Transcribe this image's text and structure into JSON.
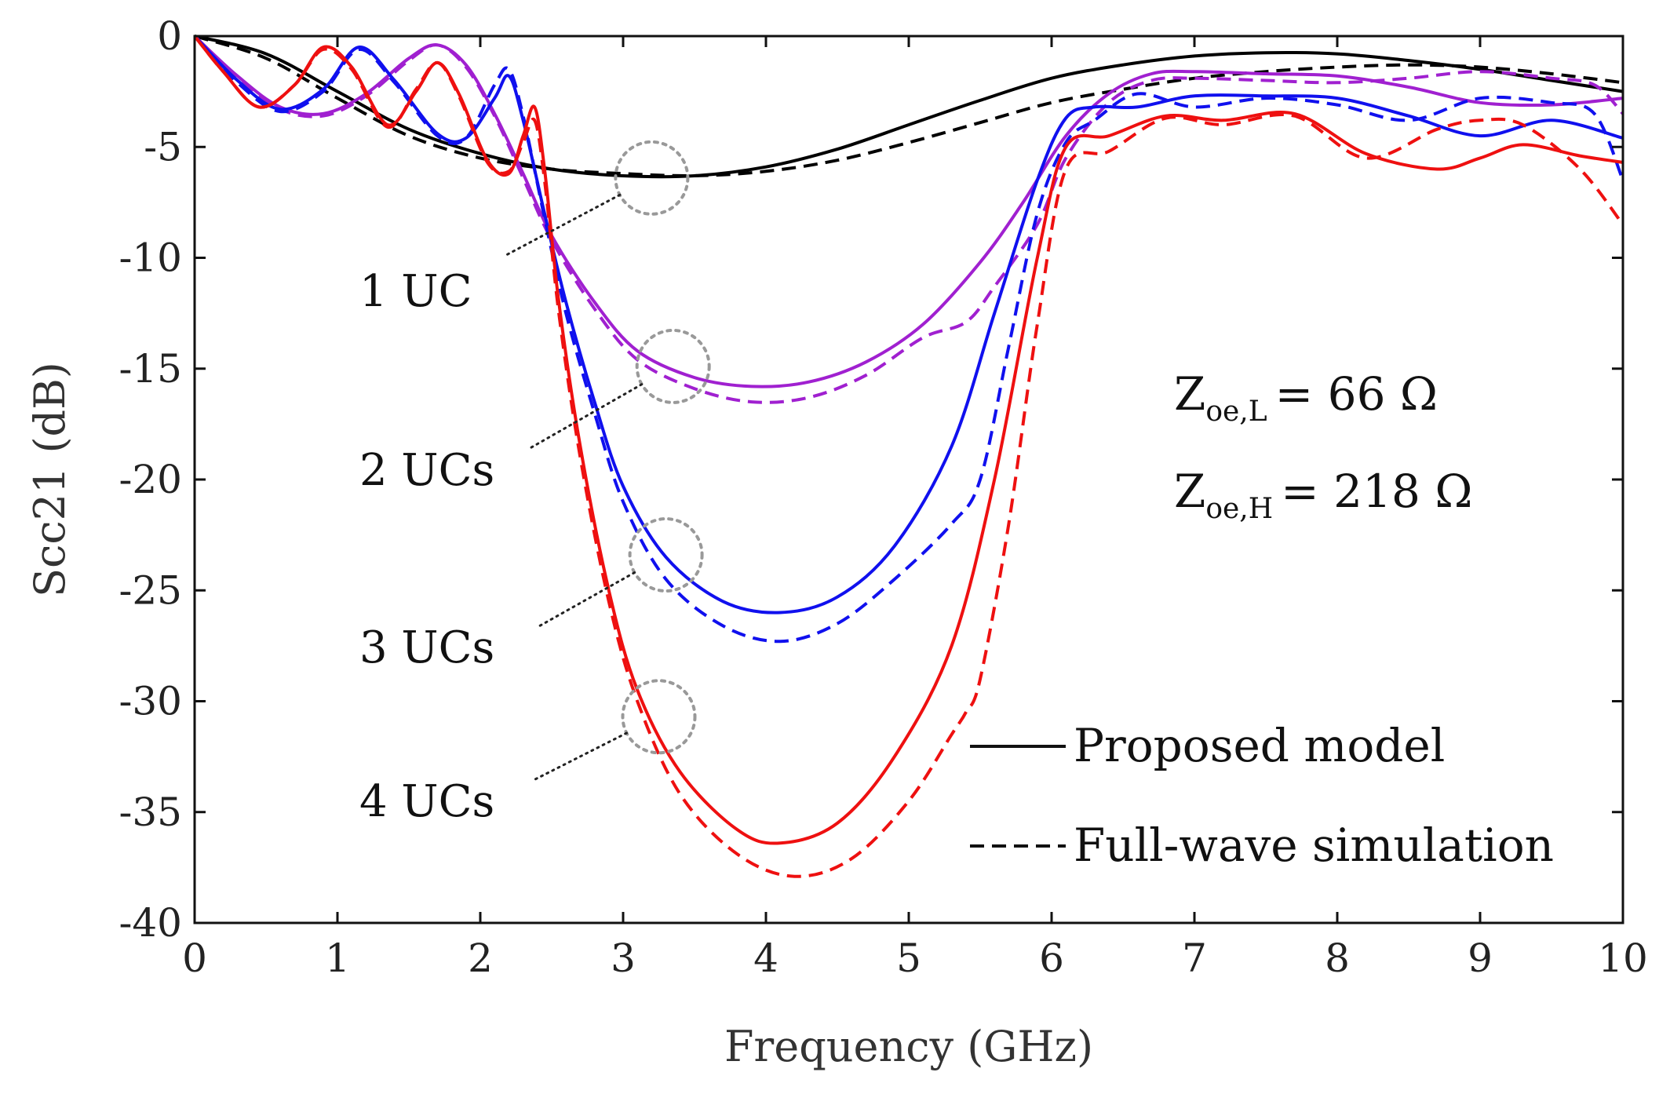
{
  "chart_data": {
    "type": "line",
    "title": "",
    "xlabel": "Frequency (GHz)",
    "ylabel": "Scc21 (dB)",
    "xlim": [
      0,
      10
    ],
    "ylim": [
      -40,
      0
    ],
    "x_ticks": [
      "0",
      "1",
      "2",
      "3",
      "4",
      "5",
      "6",
      "7",
      "8",
      "9",
      "10"
    ],
    "y_ticks": [
      "0",
      "-5",
      "-10",
      "-15",
      "-20",
      "-25",
      "-30",
      "-35",
      "-40"
    ],
    "grid": false,
    "colors": {
      "uc1": "#000000",
      "uc2": "#a020d0",
      "uc3": "#1010ee",
      "uc4": "#ee1010",
      "marker": "#999999",
      "leader": "#222222"
    },
    "series": [
      {
        "name": "1 UC - Proposed model",
        "color_key": "uc1",
        "dash": false,
        "points": [
          [
            0,
            0
          ],
          [
            0.5,
            -0.8
          ],
          [
            1,
            -2.5
          ],
          [
            1.5,
            -4.2
          ],
          [
            2,
            -5.3
          ],
          [
            2.5,
            -6
          ],
          [
            3,
            -6.3
          ],
          [
            3.5,
            -6.3
          ],
          [
            4,
            -5.9
          ],
          [
            4.5,
            -5.1
          ],
          [
            5,
            -4
          ],
          [
            5.5,
            -2.9
          ],
          [
            6,
            -1.9
          ],
          [
            6.5,
            -1.3
          ],
          [
            7,
            -0.9
          ],
          [
            7.5,
            -0.75
          ],
          [
            8,
            -0.8
          ],
          [
            8.5,
            -1.1
          ],
          [
            9,
            -1.5
          ],
          [
            9.5,
            -2
          ],
          [
            10,
            -2.5
          ]
        ]
      },
      {
        "name": "1 UC - Full-wave simulation",
        "color_key": "uc1",
        "dash": true,
        "points": [
          [
            0,
            0
          ],
          [
            0.5,
            -1
          ],
          [
            1,
            -2.8
          ],
          [
            1.5,
            -4.5
          ],
          [
            2,
            -5.5
          ],
          [
            2.5,
            -6
          ],
          [
            3,
            -6.2
          ],
          [
            3.5,
            -6.3
          ],
          [
            4,
            -6.1
          ],
          [
            4.5,
            -5.6
          ],
          [
            5,
            -4.8
          ],
          [
            5.5,
            -3.9
          ],
          [
            6,
            -3
          ],
          [
            6.5,
            -2.4
          ],
          [
            7,
            -1.9
          ],
          [
            7.5,
            -1.6
          ],
          [
            8,
            -1.4
          ],
          [
            8.5,
            -1.3
          ],
          [
            9,
            -1.4
          ],
          [
            9.5,
            -1.7
          ],
          [
            10,
            -2.1
          ]
        ]
      },
      {
        "name": "2 UCs - Proposed model",
        "color_key": "uc2",
        "dash": false,
        "points": [
          [
            0,
            0
          ],
          [
            0.3,
            -1.8
          ],
          [
            0.6,
            -3.2
          ],
          [
            0.9,
            -3.5
          ],
          [
            1.2,
            -2.6
          ],
          [
            1.5,
            -1
          ],
          [
            1.7,
            -0.4
          ],
          [
            1.9,
            -1.3
          ],
          [
            2.1,
            -3.5
          ],
          [
            2.3,
            -6.2
          ],
          [
            2.5,
            -9
          ],
          [
            2.8,
            -12
          ],
          [
            3.1,
            -14.2
          ],
          [
            3.5,
            -15.4
          ],
          [
            3.9,
            -15.8
          ],
          [
            4.3,
            -15.6
          ],
          [
            4.7,
            -14.7
          ],
          [
            5.1,
            -13
          ],
          [
            5.5,
            -10.2
          ],
          [
            5.8,
            -7.5
          ],
          [
            6.1,
            -4.5
          ],
          [
            6.4,
            -2.6
          ],
          [
            6.7,
            -1.7
          ],
          [
            7,
            -1.6
          ],
          [
            7.5,
            -1.7
          ],
          [
            8,
            -1.8
          ],
          [
            8.5,
            -2.3
          ],
          [
            9,
            -3
          ],
          [
            9.5,
            -3.1
          ],
          [
            10,
            -2.8
          ]
        ]
      },
      {
        "name": "2 UCs - Full-wave simulation",
        "color_key": "uc2",
        "dash": true,
        "points": [
          [
            0,
            0
          ],
          [
            0.3,
            -1.9
          ],
          [
            0.6,
            -3.3
          ],
          [
            0.9,
            -3.6
          ],
          [
            1.2,
            -2.7
          ],
          [
            1.5,
            -1.1
          ],
          [
            1.7,
            -0.4
          ],
          [
            1.9,
            -1.4
          ],
          [
            2.1,
            -3.6
          ],
          [
            2.3,
            -6.4
          ],
          [
            2.5,
            -9.2
          ],
          [
            2.8,
            -12.3
          ],
          [
            3.1,
            -14.6
          ],
          [
            3.5,
            -15.9
          ],
          [
            3.9,
            -16.5
          ],
          [
            4.3,
            -16.3
          ],
          [
            4.7,
            -15.3
          ],
          [
            5.1,
            -13.6
          ],
          [
            5.4,
            -12.9
          ],
          [
            5.6,
            -11.3
          ],
          [
            5.9,
            -8.5
          ],
          [
            6.1,
            -5.5
          ],
          [
            6.4,
            -3
          ],
          [
            6.7,
            -2
          ],
          [
            7,
            -1.9
          ],
          [
            7.5,
            -2
          ],
          [
            8,
            -2.1
          ],
          [
            8.5,
            -1.9
          ],
          [
            9,
            -1.6
          ],
          [
            9.5,
            -1.9
          ],
          [
            9.8,
            -2.2
          ],
          [
            10,
            -3.5
          ]
        ]
      },
      {
        "name": "3 UCs - Proposed model",
        "color_key": "uc3",
        "dash": false,
        "points": [
          [
            0,
            0
          ],
          [
            0.3,
            -2
          ],
          [
            0.6,
            -3.3
          ],
          [
            0.9,
            -2.4
          ],
          [
            1.15,
            -0.5
          ],
          [
            1.4,
            -2
          ],
          [
            1.7,
            -4.4
          ],
          [
            1.9,
            -4.6
          ],
          [
            2.1,
            -2.8
          ],
          [
            2.2,
            -1.8
          ],
          [
            2.3,
            -3.8
          ],
          [
            2.45,
            -8
          ],
          [
            2.6,
            -12
          ],
          [
            2.8,
            -16.5
          ],
          [
            3,
            -20.3
          ],
          [
            3.3,
            -23.5
          ],
          [
            3.7,
            -25.5
          ],
          [
            4.1,
            -26
          ],
          [
            4.5,
            -25.3
          ],
          [
            4.9,
            -23
          ],
          [
            5.3,
            -18.5
          ],
          [
            5.6,
            -12.5
          ],
          [
            5.9,
            -6.5
          ],
          [
            6.1,
            -3.7
          ],
          [
            6.3,
            -3.2
          ],
          [
            6.6,
            -3.2
          ],
          [
            7,
            -2.7
          ],
          [
            7.5,
            -2.7
          ],
          [
            8,
            -2.8
          ],
          [
            8.5,
            -3.6
          ],
          [
            9,
            -4.5
          ],
          [
            9.5,
            -3.8
          ],
          [
            10,
            -4.6
          ]
        ]
      },
      {
        "name": "3 UCs - Full-wave simulation",
        "color_key": "uc3",
        "dash": true,
        "points": [
          [
            0,
            0
          ],
          [
            0.3,
            -2.1
          ],
          [
            0.6,
            -3.4
          ],
          [
            0.9,
            -2.5
          ],
          [
            1.15,
            -0.6
          ],
          [
            1.4,
            -2.1
          ],
          [
            1.7,
            -4.5
          ],
          [
            1.9,
            -4.6
          ],
          [
            2.1,
            -2.2
          ],
          [
            2.2,
            -1.5
          ],
          [
            2.3,
            -3.6
          ],
          [
            2.45,
            -8.2
          ],
          [
            2.6,
            -12.5
          ],
          [
            2.8,
            -17
          ],
          [
            3,
            -21
          ],
          [
            3.3,
            -24.5
          ],
          [
            3.7,
            -26.6
          ],
          [
            4.1,
            -27.3
          ],
          [
            4.5,
            -26.5
          ],
          [
            4.9,
            -24.5
          ],
          [
            5.3,
            -22
          ],
          [
            5.5,
            -20
          ],
          [
            5.7,
            -14
          ],
          [
            5.9,
            -8
          ],
          [
            6.1,
            -4.8
          ],
          [
            6.3,
            -3.8
          ],
          [
            6.6,
            -2.6
          ],
          [
            7,
            -3.2
          ],
          [
            7.5,
            -2.8
          ],
          [
            8,
            -3.1
          ],
          [
            8.5,
            -3.8
          ],
          [
            9,
            -2.8
          ],
          [
            9.5,
            -3
          ],
          [
            9.8,
            -3.5
          ],
          [
            10,
            -6.5
          ]
        ]
      },
      {
        "name": "4 UCs - Proposed model",
        "color_key": "uc4",
        "dash": false,
        "points": [
          [
            0,
            0
          ],
          [
            0.2,
            -1.6
          ],
          [
            0.45,
            -3.2
          ],
          [
            0.7,
            -2.2
          ],
          [
            0.9,
            -0.5
          ],
          [
            1.1,
            -1.4
          ],
          [
            1.35,
            -4
          ],
          [
            1.55,
            -2.5
          ],
          [
            1.7,
            -1.2
          ],
          [
            1.85,
            -2.6
          ],
          [
            2.05,
            -5.6
          ],
          [
            2.2,
            -6.2
          ],
          [
            2.3,
            -4.5
          ],
          [
            2.38,
            -3.2
          ],
          [
            2.45,
            -6
          ],
          [
            2.55,
            -12
          ],
          [
            2.7,
            -18.5
          ],
          [
            2.9,
            -25
          ],
          [
            3.1,
            -29.5
          ],
          [
            3.4,
            -33.2
          ],
          [
            3.8,
            -35.8
          ],
          [
            4.1,
            -36.4
          ],
          [
            4.5,
            -35.5
          ],
          [
            4.9,
            -32.5
          ],
          [
            5.3,
            -27.5
          ],
          [
            5.6,
            -20
          ],
          [
            5.9,
            -10
          ],
          [
            6.1,
            -5
          ],
          [
            6.4,
            -4.5
          ],
          [
            6.8,
            -3.6
          ],
          [
            7.2,
            -3.8
          ],
          [
            7.7,
            -3.5
          ],
          [
            8.2,
            -5.3
          ],
          [
            8.7,
            -6
          ],
          [
            9,
            -5.5
          ],
          [
            9.3,
            -4.9
          ],
          [
            9.7,
            -5.4
          ],
          [
            10,
            -5.7
          ]
        ]
      },
      {
        "name": "4 UCs - Full-wave simulation",
        "color_key": "uc4",
        "dash": true,
        "points": [
          [
            0,
            0
          ],
          [
            0.2,
            -1.6
          ],
          [
            0.45,
            -3.2
          ],
          [
            0.7,
            -2.2
          ],
          [
            0.9,
            -0.6
          ],
          [
            1.1,
            -1.5
          ],
          [
            1.35,
            -4.1
          ],
          [
            1.55,
            -2.4
          ],
          [
            1.7,
            -1.2
          ],
          [
            1.85,
            -2.7
          ],
          [
            2.05,
            -5.7
          ],
          [
            2.2,
            -6.1
          ],
          [
            2.3,
            -4.8
          ],
          [
            2.38,
            -3.8
          ],
          [
            2.45,
            -6.5
          ],
          [
            2.55,
            -12.5
          ],
          [
            2.7,
            -19
          ],
          [
            2.9,
            -25.5
          ],
          [
            3.1,
            -30
          ],
          [
            3.4,
            -34.2
          ],
          [
            3.8,
            -36.9
          ],
          [
            4.2,
            -37.9
          ],
          [
            4.6,
            -37.1
          ],
          [
            5,
            -34.5
          ],
          [
            5.3,
            -31.5
          ],
          [
            5.4,
            -30.5
          ],
          [
            5.5,
            -29
          ],
          [
            5.7,
            -22
          ],
          [
            5.9,
            -13
          ],
          [
            6.1,
            -6
          ],
          [
            6.4,
            -5.2
          ],
          [
            6.8,
            -3.7
          ],
          [
            7.2,
            -4
          ],
          [
            7.7,
            -3.6
          ],
          [
            8.2,
            -5.5
          ],
          [
            8.7,
            -4.2
          ],
          [
            9,
            -3.8
          ],
          [
            9.3,
            -4
          ],
          [
            9.7,
            -6
          ],
          [
            10,
            -8.5
          ]
        ]
      }
    ],
    "annotations": [
      {
        "label": "1 UC",
        "circle_at": [
          3.2,
          -6.4
        ]
      },
      {
        "label": "2 UCs",
        "circle_at": [
          3.35,
          -14.9
        ]
      },
      {
        "label": "3 UCs",
        "circle_at": [
          3.3,
          -23.4
        ]
      },
      {
        "label": "4 UCs",
        "circle_at": [
          3.25,
          -30.7
        ]
      }
    ],
    "legend": {
      "placement": "bottom-right",
      "entries": [
        {
          "label": "Proposed model",
          "dash": false
        },
        {
          "label": "Full-wave simulation",
          "dash": true
        }
      ]
    },
    "parameters": [
      {
        "symbol": "Z",
        "subscript": "oe,L",
        "value": "= 66 Ω"
      },
      {
        "symbol": "Z",
        "subscript": "oe,H",
        "value": "= 218 Ω"
      }
    ]
  }
}
